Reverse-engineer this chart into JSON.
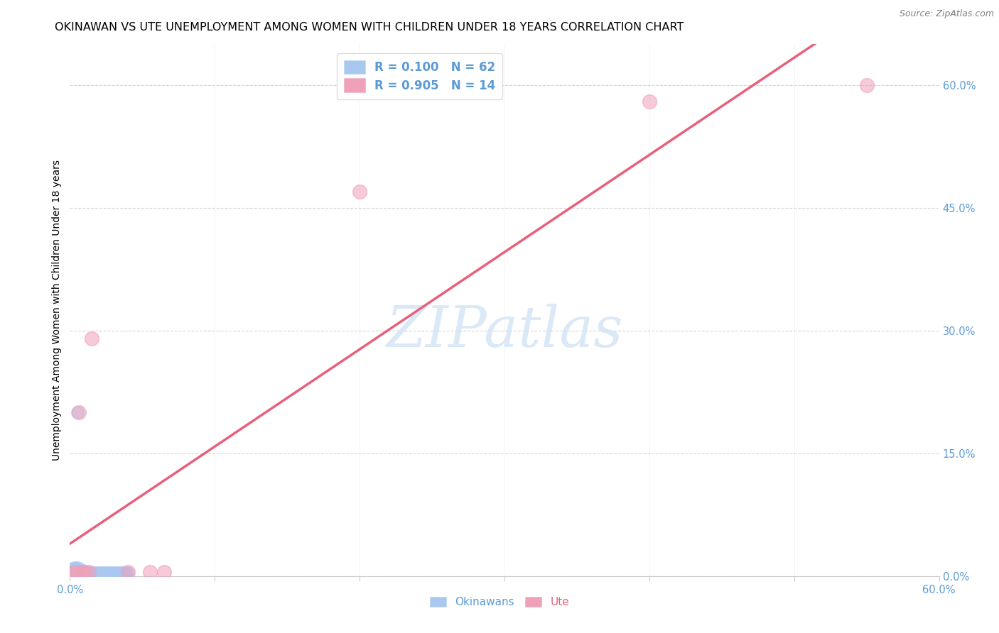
{
  "title": "OKINAWAN VS UTE UNEMPLOYMENT AMONG WOMEN WITH CHILDREN UNDER 18 YEARS CORRELATION CHART",
  "source": "Source: ZipAtlas.com",
  "ylabel": "Unemployment Among Women with Children Under 18 years",
  "legend_R_N": [
    [
      "R = 0.100",
      "N = 62"
    ],
    [
      "R = 0.905",
      "N = 14"
    ]
  ],
  "okinawan_color": "#a8c8f0",
  "ute_color": "#f0a0b8",
  "okinawan_line_color": "#90b8e8",
  "ute_line_color": "#e8607a",
  "axis_color": "#5b9bd5",
  "ute_legend_color": "#e8607a",
  "watermark_text": "ZIPatlas",
  "watermark_color": "#cde0f5",
  "xlim": [
    0.0,
    0.6
  ],
  "ylim": [
    0.0,
    0.65
  ],
  "xtick_positions": [
    0.0,
    0.1,
    0.2,
    0.3,
    0.4,
    0.5,
    0.6
  ],
  "yticks_right": [
    0.0,
    0.15,
    0.3,
    0.45,
    0.6
  ],
  "okinawan_x": [
    0.0,
    0.0,
    0.0,
    0.001,
    0.001,
    0.001,
    0.002,
    0.002,
    0.002,
    0.002,
    0.003,
    0.003,
    0.003,
    0.003,
    0.004,
    0.004,
    0.004,
    0.005,
    0.005,
    0.005,
    0.006,
    0.006,
    0.007,
    0.007,
    0.008,
    0.008,
    0.009,
    0.009,
    0.01,
    0.01,
    0.011,
    0.011,
    0.012,
    0.013,
    0.014,
    0.015,
    0.016,
    0.017,
    0.018,
    0.019,
    0.02,
    0.021,
    0.022,
    0.023,
    0.024,
    0.025,
    0.026,
    0.027,
    0.028,
    0.029,
    0.03,
    0.031,
    0.032,
    0.033,
    0.034,
    0.035,
    0.036,
    0.037,
    0.038,
    0.039,
    0.04,
    0.005
  ],
  "okinawan_y": [
    0.003,
    0.005,
    0.007,
    0.002,
    0.004,
    0.006,
    0.003,
    0.005,
    0.007,
    0.009,
    0.003,
    0.005,
    0.007,
    0.01,
    0.004,
    0.006,
    0.008,
    0.003,
    0.005,
    0.01,
    0.004,
    0.006,
    0.005,
    0.008,
    0.004,
    0.006,
    0.003,
    0.005,
    0.004,
    0.006,
    0.003,
    0.005,
    0.004,
    0.003,
    0.004,
    0.003,
    0.004,
    0.003,
    0.004,
    0.003,
    0.004,
    0.003,
    0.004,
    0.003,
    0.004,
    0.003,
    0.004,
    0.003,
    0.004,
    0.003,
    0.004,
    0.003,
    0.004,
    0.003,
    0.004,
    0.003,
    0.004,
    0.003,
    0.004,
    0.003,
    0.004,
    0.2
  ],
  "ute_x": [
    0.0,
    0.003,
    0.005,
    0.006,
    0.008,
    0.01,
    0.013,
    0.015,
    0.04,
    0.055,
    0.065,
    0.2,
    0.4,
    0.55
  ],
  "ute_y": [
    0.003,
    0.005,
    0.003,
    0.2,
    0.005,
    0.005,
    0.005,
    0.29,
    0.005,
    0.005,
    0.005,
    0.47,
    0.58,
    0.6
  ],
  "background_color": "#ffffff",
  "grid_color": "#cccccc",
  "title_fontsize": 11.5,
  "label_fontsize": 10,
  "tick_fontsize": 10.5,
  "source_fontsize": 9
}
